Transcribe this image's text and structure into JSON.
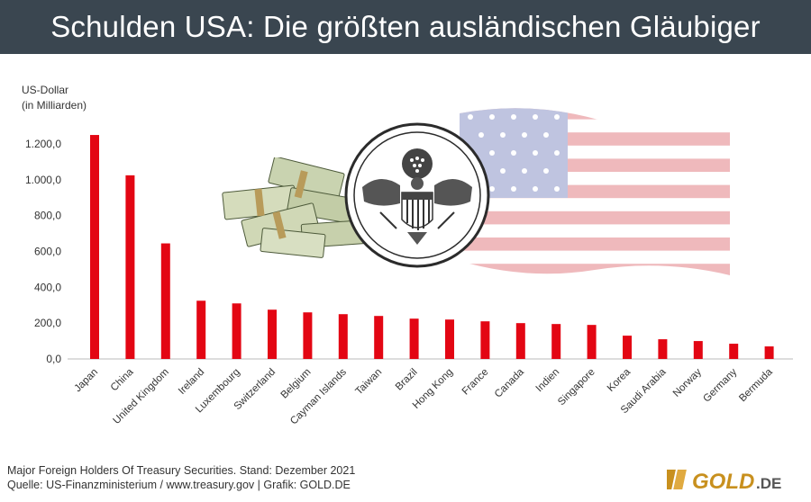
{
  "header": {
    "title": "Schulden USA: Die größten ausländischen Gläubiger"
  },
  "axis": {
    "ylabel_line1": "US-Dollar",
    "ylabel_line2": "(in Milliarden)"
  },
  "chart_data": {
    "type": "bar",
    "categories": [
      "Japan",
      "China",
      "United Kingdom",
      "Ireland",
      "Luxembourg",
      "Switzerland",
      "Belgium",
      "Cayman Islands",
      "Taiwan",
      "Brazil",
      "Hong Kong",
      "France",
      "Canada",
      "Indien",
      "Singapore",
      "Korea",
      "Saudi Arabia",
      "Norway",
      "Germany",
      "Bermuda"
    ],
    "values": [
      1250,
      1025,
      645,
      325,
      310,
      275,
      260,
      250,
      240,
      225,
      220,
      210,
      200,
      195,
      190,
      130,
      110,
      100,
      85,
      70
    ],
    "yticks": [
      "0,0",
      "200,0",
      "400,0",
      "600,0",
      "800,0",
      "1.000,0",
      "1.200,0"
    ],
    "ylim": [
      0,
      1300
    ],
    "bar_color": "#e30613"
  },
  "footer": {
    "line1": "Major Foreign Holders Of Treasury Securities. Stand: Dezember 2021",
    "line2": "Quelle: US-Finanzministerium / www.treasury.gov  |  Grafik: GOLD.DE"
  },
  "logo": {
    "text": "GOLD",
    "suffix": ".DE",
    "color": "#c8901e"
  }
}
